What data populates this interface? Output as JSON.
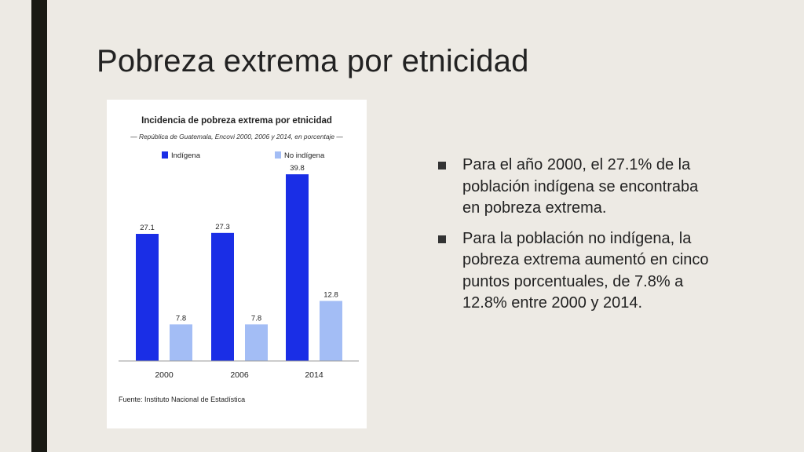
{
  "slide": {
    "title": "Pobreza extrema por etnicidad",
    "accent_bar_color": "#1a1a14",
    "background_color": "#edeae4"
  },
  "chart_data": {
    "type": "bar",
    "title": "Incidencia de pobreza extrema por etnicidad",
    "subtitle": "— República de Guatemala, Encovi 2000, 2006 y 2014, en porcentaje —",
    "categories": [
      "2000",
      "2006",
      "2014"
    ],
    "series": [
      {
        "name": "Indígena",
        "color": "#1a2ee6",
        "values": [
          27.1,
          27.3,
          39.8
        ],
        "labels": [
          "27.1",
          "27.3",
          "39.8"
        ]
      },
      {
        "name": "No indígena",
        "color": "#a3bdf5",
        "values": [
          7.8,
          7.8,
          12.8
        ],
        "labels": [
          "7.8",
          "7.8",
          "12.8"
        ]
      }
    ],
    "ylim": [
      0,
      44
    ],
    "grid": false,
    "legend_position": "top",
    "source": "Fuente: Instituto Nacional de Estadística"
  },
  "bullets": [
    {
      "text": "Para el año 2000, el 27.1% de la población indígena se encontraba en pobreza extrema."
    },
    {
      "text": "Para la población no indígena, la pobreza extrema aumentó en cinco puntos porcentuales, de 7.8% a 12.8% entre 2000 y 2014."
    }
  ]
}
